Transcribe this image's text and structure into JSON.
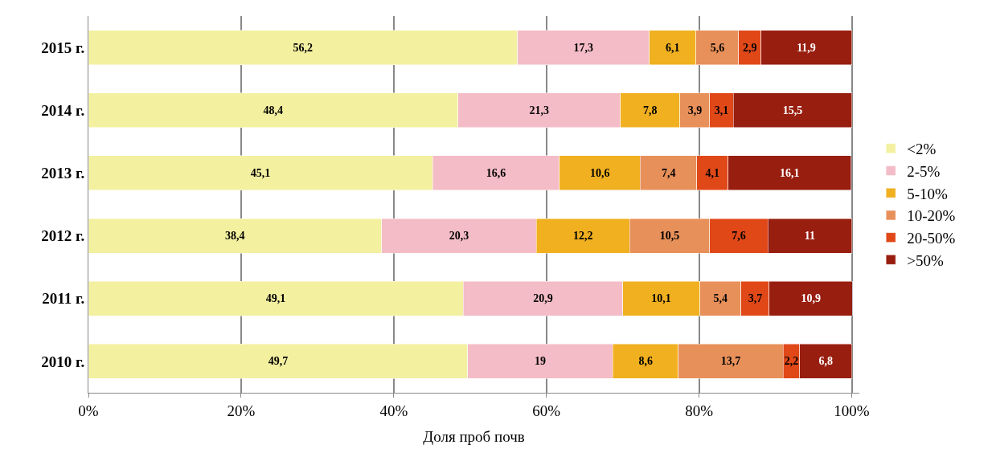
{
  "chart_data": {
    "type": "bar",
    "orientation": "horizontal",
    "stacked": true,
    "xlabel": "Доля проб почв",
    "categories": [
      "2015 г.",
      "2014 г.",
      "2013 г.",
      "2012 г.",
      "2011 г.",
      "2010 г."
    ],
    "xlim": [
      0,
      101
    ],
    "xticks": [
      {
        "value": 0,
        "label": "0%"
      },
      {
        "value": 20,
        "label": "20%"
      },
      {
        "value": 40,
        "label": "40%"
      },
      {
        "value": 60,
        "label": "60%"
      },
      {
        "value": 80,
        "label": "80%"
      },
      {
        "value": 100,
        "label": "100%"
      }
    ],
    "grid": "x",
    "legend": "right",
    "series": [
      {
        "name": "<2%",
        "color": "#f3f0a0",
        "values": [
          56.2,
          48.4,
          45.1,
          38.4,
          49.1,
          49.7
        ],
        "value_labels": [
          "56,2",
          "48,4",
          "45,1",
          "38,4",
          "49,1",
          "49,7"
        ]
      },
      {
        "name": "2-5%",
        "color": "#f4bcc6",
        "values": [
          17.3,
          21.3,
          16.6,
          20.3,
          20.9,
          19
        ],
        "value_labels": [
          "17,3",
          "21,3",
          "16,6",
          "20,3",
          "20,9",
          "19"
        ]
      },
      {
        "name": "5-10%",
        "color": "#f0b020",
        "values": [
          6.1,
          7.8,
          10.6,
          12.2,
          10.1,
          8.6
        ],
        "value_labels": [
          "6,1",
          "7,8",
          "10,6",
          "12,2",
          "10,1",
          "8,6"
        ]
      },
      {
        "name": "10-20%",
        "color": "#e8905a",
        "values": [
          5.6,
          3.9,
          7.4,
          10.5,
          5.4,
          13.7
        ],
        "value_labels": [
          "5,6",
          "3,9",
          "7,4",
          "10,5",
          "5,4",
          "13,7"
        ]
      },
      {
        "name": "20-50%",
        "color": "#e04818",
        "values": [
          2.9,
          3.1,
          4.1,
          7.6,
          3.7,
          2.2
        ],
        "value_labels": [
          "2,9",
          "3,1",
          "4,1",
          "7,6",
          "3,7",
          "2,2"
        ]
      },
      {
        "name": ">50%",
        "color": "#981e10",
        "values": [
          11.9,
          15.5,
          16.1,
          11,
          10.9,
          6.8
        ],
        "value_labels": [
          "11,9",
          "15,5",
          "16,1",
          "11",
          "10,9",
          "6,8"
        ]
      }
    ]
  }
}
